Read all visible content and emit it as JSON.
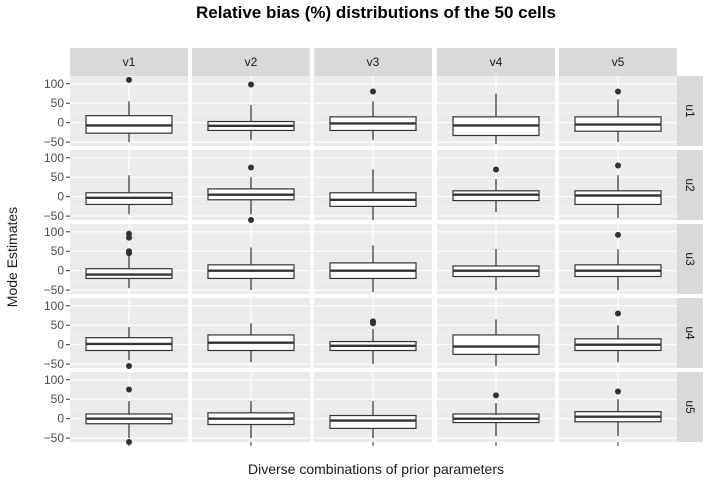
{
  "chart_data": {
    "type": "boxplot",
    "title": "Relative bias (%) distributions of the 50 cells",
    "xlabel": "Diverse combinations of prior parameters",
    "ylabel": "Mode Estimates",
    "facet_columns": [
      "v1",
      "v2",
      "v3",
      "v4",
      "v5"
    ],
    "facet_rows": [
      "u1",
      "u2",
      "u3",
      "u4",
      "u5"
    ],
    "ylim": [
      -60,
      120
    ],
    "yticks": [
      -50,
      0,
      50,
      100
    ],
    "ytick_labels": [
      "−50",
      "0",
      "50",
      "100"
    ],
    "grid": true,
    "panels": [
      {
        "row": "u1",
        "col": "v1",
        "whisker_low": -50,
        "q1": -27,
        "median": -7,
        "q3": 18,
        "whisker_high": 55,
        "outliers": [
          110
        ]
      },
      {
        "row": "u1",
        "col": "v2",
        "whisker_low": -45,
        "q1": -20,
        "median": -8,
        "q3": 3,
        "whisker_high": 45,
        "outliers": [
          98
        ]
      },
      {
        "row": "u1",
        "col": "v3",
        "whisker_low": -45,
        "q1": -20,
        "median": -2,
        "q3": 15,
        "whisker_high": 55,
        "outliers": [
          80
        ]
      },
      {
        "row": "u1",
        "col": "v4",
        "whisker_low": -55,
        "q1": -33,
        "median": -7,
        "q3": 15,
        "whisker_high": 75,
        "outliers": []
      },
      {
        "row": "u1",
        "col": "v5",
        "whisker_low": -50,
        "q1": -22,
        "median": -5,
        "q3": 15,
        "whisker_high": 60,
        "outliers": [
          80
        ]
      },
      {
        "row": "u2",
        "col": "v1",
        "whisker_low": -45,
        "q1": -20,
        "median": -3,
        "q3": 10,
        "whisker_high": 55,
        "outliers": []
      },
      {
        "row": "u2",
        "col": "v2",
        "whisker_low": -45,
        "q1": -8,
        "median": 5,
        "q3": 20,
        "whisker_high": 50,
        "outliers": [
          75,
          -60
        ]
      },
      {
        "row": "u2",
        "col": "v3",
        "whisker_low": -60,
        "q1": -25,
        "median": -8,
        "q3": 10,
        "whisker_high": 70,
        "outliers": []
      },
      {
        "row": "u2",
        "col": "v4",
        "whisker_low": -40,
        "q1": -10,
        "median": 5,
        "q3": 15,
        "whisker_high": 45,
        "outliers": [
          70
        ]
      },
      {
        "row": "u2",
        "col": "v5",
        "whisker_low": -55,
        "q1": -20,
        "median": 3,
        "q3": 15,
        "whisker_high": 55,
        "outliers": [
          80
        ]
      },
      {
        "row": "u3",
        "col": "v1",
        "whisker_low": -45,
        "q1": -20,
        "median": -10,
        "q3": 5,
        "whisker_high": 40,
        "outliers": [
          95,
          85,
          50,
          45
        ]
      },
      {
        "row": "u3",
        "col": "v2",
        "whisker_low": -50,
        "q1": -20,
        "median": 0,
        "q3": 15,
        "whisker_high": 60,
        "outliers": []
      },
      {
        "row": "u3",
        "col": "v3",
        "whisker_low": -55,
        "q1": -20,
        "median": 0,
        "q3": 20,
        "whisker_high": 65,
        "outliers": []
      },
      {
        "row": "u3",
        "col": "v4",
        "whisker_low": -50,
        "q1": -15,
        "median": 0,
        "q3": 12,
        "whisker_high": 55,
        "outliers": []
      },
      {
        "row": "u3",
        "col": "v5",
        "whisker_low": -50,
        "q1": -15,
        "median": 0,
        "q3": 15,
        "whisker_high": 55,
        "outliers": [
          92
        ]
      },
      {
        "row": "u4",
        "col": "v1",
        "whisker_low": -40,
        "q1": -15,
        "median": 2,
        "q3": 18,
        "whisker_high": 45,
        "outliers": [
          -55
        ]
      },
      {
        "row": "u4",
        "col": "v2",
        "whisker_low": -45,
        "q1": -15,
        "median": 5,
        "q3": 25,
        "whisker_high": 55,
        "outliers": []
      },
      {
        "row": "u4",
        "col": "v3",
        "whisker_low": -50,
        "q1": -15,
        "median": -3,
        "q3": 8,
        "whisker_high": 40,
        "outliers": [
          60,
          55
        ]
      },
      {
        "row": "u4",
        "col": "v4",
        "whisker_low": -55,
        "q1": -25,
        "median": -5,
        "q3": 25,
        "whisker_high": 65,
        "outliers": []
      },
      {
        "row": "u4",
        "col": "v5",
        "whisker_low": -45,
        "q1": -15,
        "median": 0,
        "q3": 15,
        "whisker_high": 50,
        "outliers": [
          80
        ]
      },
      {
        "row": "u5",
        "col": "v1",
        "whisker_low": -50,
        "q1": -13,
        "median": 0,
        "q3": 12,
        "whisker_high": 45,
        "outliers": [
          75,
          -60
        ]
      },
      {
        "row": "u5",
        "col": "v2",
        "whisker_low": -50,
        "q1": -15,
        "median": 0,
        "q3": 15,
        "whisker_high": 45,
        "outliers": []
      },
      {
        "row": "u5",
        "col": "v3",
        "whisker_low": -50,
        "q1": -25,
        "median": -5,
        "q3": 8,
        "whisker_high": 45,
        "outliers": []
      },
      {
        "row": "u5",
        "col": "v4",
        "whisker_low": -45,
        "q1": -10,
        "median": 0,
        "q3": 12,
        "whisker_high": 40,
        "outliers": [
          60
        ]
      },
      {
        "row": "u5",
        "col": "v5",
        "whisker_low": -45,
        "q1": -8,
        "median": 5,
        "q3": 18,
        "whisker_high": 50,
        "outliers": [
          70
        ]
      }
    ]
  },
  "colors": {
    "panel_background": "#ebebeb",
    "strip_background": "#d9d9d9",
    "grid_major": "#ffffff",
    "grid_minor": "#f5f5f5",
    "box_fill": "#ffffff",
    "box_stroke": "#333333",
    "outlier": "#333333"
  }
}
